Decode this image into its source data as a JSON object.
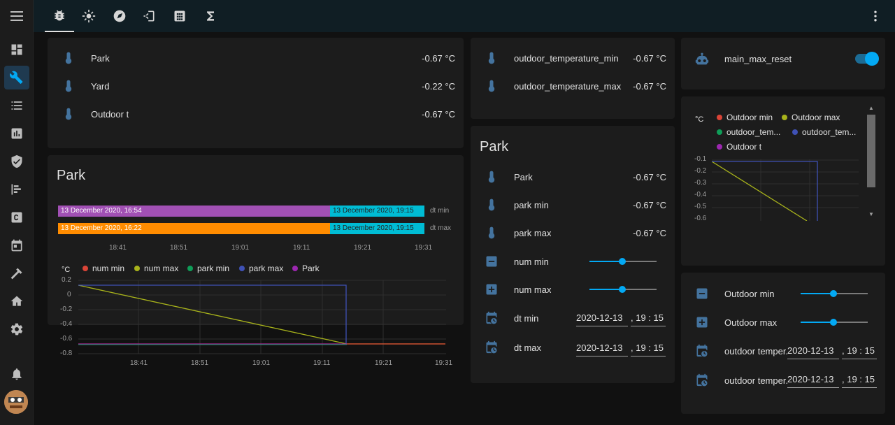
{
  "tabs": [
    {
      "icon": "bug-icon"
    },
    {
      "icon": "sun-icon"
    },
    {
      "icon": "compass-icon"
    },
    {
      "icon": "login-icon"
    },
    {
      "icon": "calculator-icon"
    },
    {
      "icon": "sigma-icon"
    }
  ],
  "sidebar": [
    {
      "icon": "menu-icon"
    },
    {
      "icon": "dashboard-icon"
    },
    {
      "icon": "tools-icon",
      "active": true
    },
    {
      "icon": "list-icon"
    },
    {
      "icon": "chart-icon"
    },
    {
      "icon": "shield-icon"
    },
    {
      "icon": "history-icon"
    },
    {
      "icon": "c-icon"
    },
    {
      "icon": "calendar-icon"
    },
    {
      "icon": "hammer-icon"
    },
    {
      "icon": "home-icon"
    },
    {
      "icon": "gear-icon"
    },
    {
      "icon": "bell-icon"
    }
  ],
  "entities_card": {
    "rows": [
      {
        "name": "Park",
        "value": "-0.67 °C"
      },
      {
        "name": "Yard",
        "value": "-0.22 °C"
      },
      {
        "name": "Outdoor t",
        "value": "-0.67 °C"
      }
    ]
  },
  "park_graph_card": {
    "title": "Park",
    "timeline": {
      "rows": [
        {
          "label": "dt min",
          "segments": [
            {
              "text": "13 December 2020, 16:54",
              "color": "#a150b4"
            },
            {
              "text": "13 December 2020, 19:15",
              "color": "#00bcd4"
            }
          ]
        },
        {
          "label": "dt max",
          "segments": [
            {
              "text": "13 December 2020, 16:22",
              "color": "#ff8c00"
            },
            {
              "text": "13 December 2020, 19:15",
              "color": "#00bcd4"
            }
          ]
        }
      ],
      "ticks": [
        "18:41",
        "18:51",
        "19:01",
        "19:11",
        "19:21",
        "19:31"
      ]
    },
    "chart_data": {
      "type": "line",
      "ylabel": "°C",
      "ylim": [
        -0.8,
        0.2
      ],
      "yticks": [
        "0.2",
        "0",
        "-0.2",
        "-0.4",
        "-0.6",
        "-0.8"
      ],
      "xticks": [
        "18:41",
        "18:51",
        "19:01",
        "19:11",
        "19:21",
        "19:31"
      ],
      "series": [
        {
          "name": "num min",
          "color": "#db4437"
        },
        {
          "name": "num max",
          "color": "#a8b31b"
        },
        {
          "name": "park min",
          "color": "#0f9d58"
        },
        {
          "name": "park max",
          "color": "#3f51b5"
        },
        {
          "name": "Park",
          "color": "#9c27b0"
        }
      ]
    }
  },
  "outdoor_minmax_card": {
    "rows": [
      {
        "name": "outdoor_temperature_min",
        "value": "-0.67 °C"
      },
      {
        "name": "outdoor_temperature_max",
        "value": "-0.67 °C"
      }
    ]
  },
  "park_card": {
    "title": "Park",
    "rows": [
      {
        "name": "Park",
        "value": "-0.67 °C"
      },
      {
        "name": "park min",
        "value": "-0.67 °C"
      },
      {
        "name": "park max",
        "value": "-0.67 °C"
      }
    ],
    "sliders": [
      {
        "name": "num min",
        "level": 0.5
      },
      {
        "name": "num max",
        "level": 0.5
      }
    ],
    "datetimes": [
      {
        "name": "dt min",
        "date": "2020-12-13",
        "time": ", 19 : 15"
      },
      {
        "name": "dt max",
        "date": "2020-12-13",
        "time": ", 19 : 15"
      }
    ]
  },
  "main_max_card": {
    "name": "main_max_reset",
    "toggle_on": true
  },
  "outdoor_graph_card": {
    "chart_data": {
      "type": "line",
      "ylabel": "°C",
      "yticks": [
        "-0.1",
        "-0.2",
        "-0.3",
        "-0.4",
        "-0.5",
        "-0.6"
      ],
      "series": [
        {
          "name": "Outdoor min",
          "color": "#db4437"
        },
        {
          "name": "Outdoor max",
          "color": "#a8b31b"
        },
        {
          "name": "outdoor_tem...",
          "color": "#0f9d58"
        },
        {
          "name": "outdoor_tem...",
          "color": "#3f51b5"
        },
        {
          "name": "Outdoor t",
          "color": "#9c27b0"
        }
      ]
    }
  },
  "outdoor_controls_card": {
    "sliders": [
      {
        "name": "Outdoor min",
        "level": 0.5
      },
      {
        "name": "Outdoor max",
        "level": 0.5
      }
    ],
    "datetimes": [
      {
        "name": "outdoor temper...",
        "date": "2020-12-13",
        "time": ", 19 : 15"
      },
      {
        "name": "outdoor temper...",
        "date": "2020-12-13",
        "time": ", 19 : 15"
      }
    ]
  }
}
